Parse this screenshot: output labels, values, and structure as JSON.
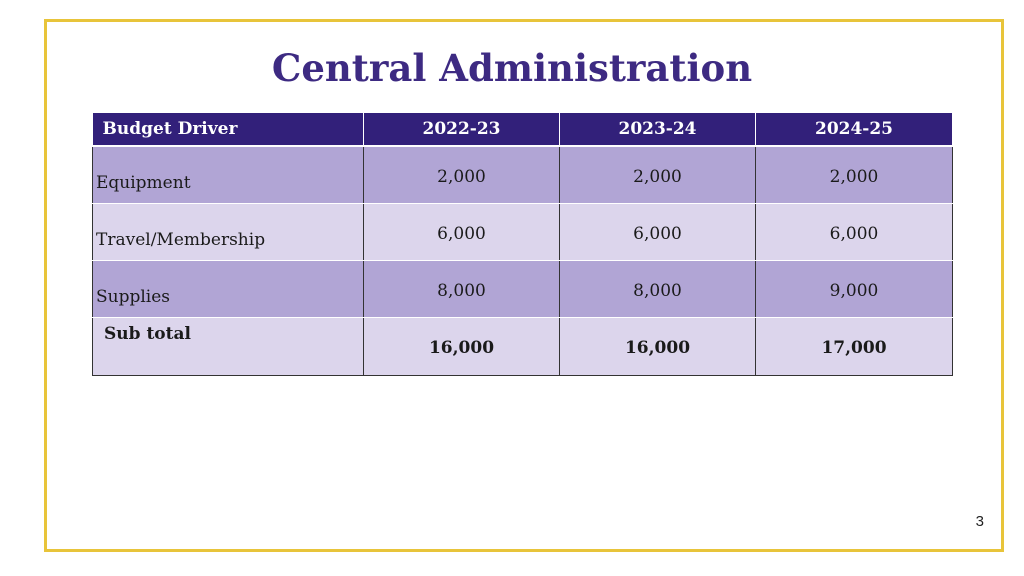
{
  "slide": {
    "title": "Central Administration",
    "page_number": "3"
  },
  "table": {
    "headers": [
      "Budget Driver",
      "2022-23",
      "2023-24",
      "2024-25"
    ],
    "rows": [
      {
        "label": "Equipment",
        "values": [
          "2,000",
          "2,000",
          "2,000"
        ]
      },
      {
        "label": "Travel/Membership",
        "values": [
          "6,000",
          "6,000",
          "6,000"
        ]
      },
      {
        "label": "Supplies",
        "values": [
          "8,000",
          "8,000",
          "9,000"
        ]
      },
      {
        "label": "Sub total",
        "values": [
          "16,000",
          "16,000",
          "17,000"
        ]
      }
    ]
  },
  "colors": {
    "title": "#3d2a82",
    "header_bg": "#32207a",
    "row_dark": "#b1a5d5",
    "row_light": "#dcd5ec",
    "frame": "#e8c43a"
  }
}
